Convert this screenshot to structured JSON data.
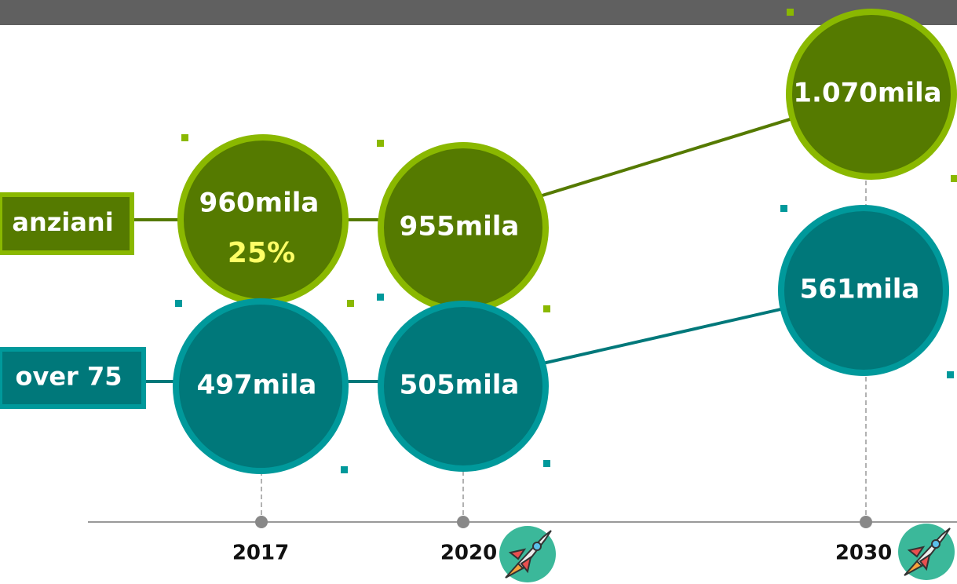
{
  "series": [
    {
      "label": "anziani",
      "points": [
        {
          "value": "960mila",
          "share": "25%"
        },
        {
          "value": "955mila"
        },
        {
          "value": "1.070mila"
        }
      ]
    },
    {
      "label": "over 75",
      "points": [
        {
          "value": "497mila"
        },
        {
          "value": "505mila"
        },
        {
          "value": "561mila"
        }
      ]
    }
  ],
  "years": [
    "2017",
    "2020",
    "2030"
  ]
}
